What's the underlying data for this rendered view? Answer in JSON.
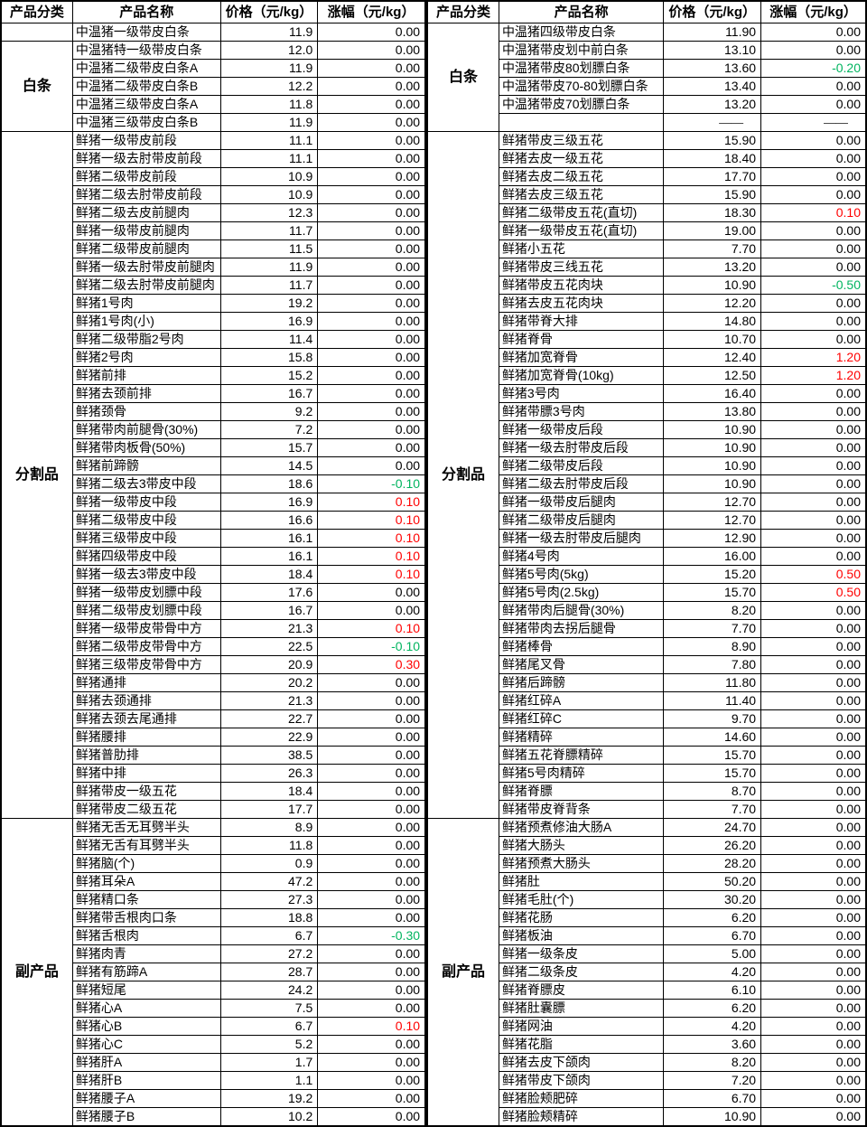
{
  "dash": "——",
  "colors": {
    "up_change": "#ff0000",
    "down_change": "#00b45f",
    "text": "#000000",
    "grid": "#000000"
  },
  "tables": [
    {
      "headers": [
        "产品分类",
        "产品名称",
        "价格（元/kg）",
        "涨幅（元/kg）"
      ],
      "groups": [
        {
          "category": "",
          "rows": [
            {
              "name": "中温猪一级带皮白条",
              "price": "11.9",
              "change": "0.00"
            }
          ]
        },
        {
          "category": "白条",
          "rows": [
            {
              "name": "中温猪特一级带皮白条",
              "price": "12.0",
              "change": "0.00"
            },
            {
              "name": "中温猪二级带皮白条A",
              "price": "11.9",
              "change": "0.00"
            },
            {
              "name": "中温猪二级带皮白条B",
              "price": "12.2",
              "change": "0.00"
            },
            {
              "name": "中温猪三级带皮白条A",
              "price": "11.8",
              "change": "0.00"
            },
            {
              "name": "中温猪三级带皮白条B",
              "price": "11.9",
              "change": "0.00"
            }
          ]
        },
        {
          "category": "分割品",
          "rows": [
            {
              "name": "鲜猪一级带皮前段",
              "price": "11.1",
              "change": "0.00"
            },
            {
              "name": "鲜猪一级去肘带皮前段",
              "price": "11.1",
              "change": "0.00"
            },
            {
              "name": "鲜猪二级带皮前段",
              "price": "10.9",
              "change": "0.00"
            },
            {
              "name": "鲜猪二级去肘带皮前段",
              "price": "10.9",
              "change": "0.00"
            },
            {
              "name": "鲜猪二级去皮前腿肉",
              "price": "12.3",
              "change": "0.00"
            },
            {
              "name": "鲜猪一级带皮前腿肉",
              "price": "11.7",
              "change": "0.00"
            },
            {
              "name": "鲜猪二级带皮前腿肉",
              "price": "11.5",
              "change": "0.00"
            },
            {
              "name": "鲜猪一级去肘带皮前腿肉",
              "price": "11.9",
              "change": "0.00"
            },
            {
              "name": "鲜猪二级去肘带皮前腿肉",
              "price": "11.7",
              "change": "0.00"
            },
            {
              "name": "鲜猪1号肉",
              "price": "19.2",
              "change": "0.00"
            },
            {
              "name": "鲜猪1号肉(小)",
              "price": "16.9",
              "change": "0.00"
            },
            {
              "name": "鲜猪二级带脂2号肉",
              "price": "11.4",
              "change": "0.00"
            },
            {
              "name": "鲜猪2号肉",
              "price": "15.8",
              "change": "0.00"
            },
            {
              "name": "鲜猪前排",
              "price": "15.2",
              "change": "0.00"
            },
            {
              "name": "鲜猪去颈前排",
              "price": "16.7",
              "change": "0.00"
            },
            {
              "name": "鲜猪颈骨",
              "price": "9.2",
              "change": "0.00"
            },
            {
              "name": "鲜猪带肉前腿骨(30%)",
              "price": "7.2",
              "change": "0.00"
            },
            {
              "name": "鲜猪带肉板骨(50%)",
              "price": "15.7",
              "change": "0.00"
            },
            {
              "name": "鲜猪前蹄髈",
              "price": "14.5",
              "change": "0.00"
            },
            {
              "name": "鲜猪二级去3带皮中段",
              "price": "18.6",
              "change": "-0.10"
            },
            {
              "name": "鲜猪一级带皮中段",
              "price": "16.9",
              "change": "0.10"
            },
            {
              "name": "鲜猪二级带皮中段",
              "price": "16.6",
              "change": "0.10"
            },
            {
              "name": "鲜猪三级带皮中段",
              "price": "16.1",
              "change": "0.10"
            },
            {
              "name": "鲜猪四级带皮中段",
              "price": "16.1",
              "change": "0.10"
            },
            {
              "name": "鲜猪一级去3带皮中段",
              "price": "18.4",
              "change": "0.10"
            },
            {
              "name": "鲜猪一级带皮划膘中段",
              "price": "17.6",
              "change": "0.00"
            },
            {
              "name": "鲜猪二级带皮划膘中段",
              "price": "16.7",
              "change": "0.00"
            },
            {
              "name": "鲜猪一级带皮带骨中方",
              "price": "21.3",
              "change": "0.10"
            },
            {
              "name": "鲜猪二级带皮带骨中方",
              "price": "22.5",
              "change": "-0.10"
            },
            {
              "name": "鲜猪三级带皮带骨中方",
              "price": "20.9",
              "change": "0.30"
            },
            {
              "name": "鲜猪通排",
              "price": "20.2",
              "change": "0.00"
            },
            {
              "name": "鲜猪去颈通排",
              "price": "21.3",
              "change": "0.00"
            },
            {
              "name": "鲜猪去颈去尾通排",
              "price": "22.7",
              "change": "0.00"
            },
            {
              "name": "鲜猪腰排",
              "price": "22.9",
              "change": "0.00"
            },
            {
              "name": "鲜猪普肋排",
              "price": "38.5",
              "change": "0.00"
            },
            {
              "name": "鲜猪中排",
              "price": "26.3",
              "change": "0.00"
            },
            {
              "name": "鲜猪带皮一级五花",
              "price": "18.4",
              "change": "0.00"
            },
            {
              "name": "鲜猪带皮二级五花",
              "price": "17.7",
              "change": "0.00"
            }
          ]
        },
        {
          "category": "副产品",
          "rows": [
            {
              "name": "鲜猪无舌无耳劈半头",
              "price": "8.9",
              "change": "0.00"
            },
            {
              "name": "鲜猪无舌有耳劈半头",
              "price": "11.8",
              "change": "0.00"
            },
            {
              "name": "鲜猪脑(个)",
              "price": "0.9",
              "change": "0.00"
            },
            {
              "name": "鲜猪耳朵A",
              "price": "47.2",
              "change": "0.00"
            },
            {
              "name": "鲜猪精口条",
              "price": "27.3",
              "change": "0.00"
            },
            {
              "name": "鲜猪带舌根肉口条",
              "price": "18.8",
              "change": "0.00"
            },
            {
              "name": "鲜猪舌根肉",
              "price": "6.7",
              "change": "-0.30"
            },
            {
              "name": "鲜猪肉青",
              "price": "27.2",
              "change": "0.00"
            },
            {
              "name": "鲜猪有筋蹄A",
              "price": "28.7",
              "change": "0.00"
            },
            {
              "name": "鲜猪短尾",
              "price": "24.2",
              "change": "0.00"
            },
            {
              "name": "鲜猪心A",
              "price": "7.5",
              "change": "0.00"
            },
            {
              "name": "鲜猪心B",
              "price": "6.7",
              "change": "0.10"
            },
            {
              "name": "鲜猪心C",
              "price": "5.2",
              "change": "0.00"
            },
            {
              "name": "鲜猪肝A",
              "price": "1.7",
              "change": "0.00"
            },
            {
              "name": "鲜猪肝B",
              "price": "1.1",
              "change": "0.00"
            },
            {
              "name": "鲜猪腰子A",
              "price": "19.2",
              "change": "0.00"
            },
            {
              "name": "鲜猪腰子B",
              "price": "10.2",
              "change": "0.00"
            }
          ]
        }
      ]
    },
    {
      "headers": [
        "产品分类",
        "产品名称",
        "价格（元/kg）",
        "涨幅（元/kg）"
      ],
      "groups": [
        {
          "category": "白条",
          "rows": [
            {
              "name": "中温猪四级带皮白条",
              "price": "11.90",
              "change": "0.00"
            },
            {
              "name": "中温猪带皮划中前白条",
              "price": "13.10",
              "change": "0.00"
            },
            {
              "name": "中温猪带皮80划膘白条",
              "price": "13.60",
              "change": "-0.20"
            },
            {
              "name": "中温猪带皮70-80划膘白条",
              "price": "13.40",
              "change": "0.00"
            },
            {
              "name": "中温猪带皮70划膘白条",
              "price": "13.20",
              "change": "0.00"
            },
            {
              "name": "",
              "price": "——",
              "change": "——"
            }
          ]
        },
        {
          "category": "分割品",
          "rows": [
            {
              "name": "鲜猪带皮三级五花",
              "price": "15.90",
              "change": "0.00"
            },
            {
              "name": "鲜猪去皮一级五花",
              "price": "18.40",
              "change": "0.00"
            },
            {
              "name": "鲜猪去皮二级五花",
              "price": "17.70",
              "change": "0.00"
            },
            {
              "name": "鲜猪去皮三级五花",
              "price": "15.90",
              "change": "0.00"
            },
            {
              "name": "鲜猪二级带皮五花(直切)",
              "price": "18.30",
              "change": "0.10"
            },
            {
              "name": "鲜猪一级带皮五花(直切)",
              "price": "19.00",
              "change": "0.00"
            },
            {
              "name": "鲜猪小五花",
              "price": "7.70",
              "change": "0.00"
            },
            {
              "name": "鲜猪带皮三线五花",
              "price": "13.20",
              "change": "0.00"
            },
            {
              "name": "鲜猪带皮五花肉块",
              "price": "10.90",
              "change": "-0.50"
            },
            {
              "name": "鲜猪去皮五花肉块",
              "price": "12.20",
              "change": "0.00"
            },
            {
              "name": "鲜猪带脊大排",
              "price": "14.80",
              "change": "0.00"
            },
            {
              "name": "鲜猪脊骨",
              "price": "10.70",
              "change": "0.00"
            },
            {
              "name": "鲜猪加宽脊骨",
              "price": "12.40",
              "change": "1.20"
            },
            {
              "name": "鲜猪加宽脊骨(10kg)",
              "price": "12.50",
              "change": "1.20"
            },
            {
              "name": "鲜猪3号肉",
              "price": "16.40",
              "change": "0.00"
            },
            {
              "name": "鲜猪带膘3号肉",
              "price": "13.80",
              "change": "0.00"
            },
            {
              "name": "鲜猪一级带皮后段",
              "price": "10.90",
              "change": "0.00"
            },
            {
              "name": "鲜猪一级去肘带皮后段",
              "price": "10.90",
              "change": "0.00"
            },
            {
              "name": "鲜猪二级带皮后段",
              "price": "10.90",
              "change": "0.00"
            },
            {
              "name": "鲜猪二级去肘带皮后段",
              "price": "10.90",
              "change": "0.00"
            },
            {
              "name": "鲜猪一级带皮后腿肉",
              "price": "12.70",
              "change": "0.00"
            },
            {
              "name": "鲜猪二级带皮后腿肉",
              "price": "12.70",
              "change": "0.00"
            },
            {
              "name": "鲜猪一级去肘带皮后腿肉",
              "price": "12.90",
              "change": "0.00"
            },
            {
              "name": "鲜猪4号肉",
              "price": "16.00",
              "change": "0.00"
            },
            {
              "name": "鲜猪5号肉(5kg)",
              "price": "15.20",
              "change": "0.50"
            },
            {
              "name": "鲜猪5号肉(2.5kg)",
              "price": "15.70",
              "change": "0.50"
            },
            {
              "name": "鲜猪带肉后腿骨(30%)",
              "price": "8.20",
              "change": "0.00"
            },
            {
              "name": "鲜猪带肉去拐后腿骨",
              "price": "7.70",
              "change": "0.00"
            },
            {
              "name": "鲜猪棒骨",
              "price": "8.90",
              "change": "0.00"
            },
            {
              "name": "鲜猪尾叉骨",
              "price": "7.80",
              "change": "0.00"
            },
            {
              "name": "鲜猪后蹄髈",
              "price": "11.80",
              "change": "0.00"
            },
            {
              "name": "鲜猪红碎A",
              "price": "11.40",
              "change": "0.00"
            },
            {
              "name": "鲜猪红碎C",
              "price": "9.70",
              "change": "0.00"
            },
            {
              "name": "鲜猪精碎",
              "price": "14.60",
              "change": "0.00"
            },
            {
              "name": "鲜猪五花脊膘精碎",
              "price": "15.70",
              "change": "0.00"
            },
            {
              "name": "鲜猪5号肉精碎",
              "price": "15.70",
              "change": "0.00"
            },
            {
              "name": "鲜猪脊膘",
              "price": "8.70",
              "change": "0.00"
            },
            {
              "name": "鲜猪带皮脊背条",
              "price": "7.70",
              "change": "0.00"
            }
          ]
        },
        {
          "category": "副产品",
          "rows": [
            {
              "name": "鲜猪预煮修油大肠A",
              "price": "24.70",
              "change": "0.00"
            },
            {
              "name": "鲜猪大肠头",
              "price": "26.20",
              "change": "0.00"
            },
            {
              "name": "鲜猪预煮大肠头",
              "price": "28.20",
              "change": "0.00"
            },
            {
              "name": "鲜猪肚",
              "price": "50.20",
              "change": "0.00"
            },
            {
              "name": "鲜猪毛肚(个)",
              "price": "30.20",
              "change": "0.00"
            },
            {
              "name": "鲜猪花肠",
              "price": "6.20",
              "change": "0.00"
            },
            {
              "name": "鲜猪板油",
              "price": "6.70",
              "change": "0.00"
            },
            {
              "name": "鲜猪一级条皮",
              "price": "5.00",
              "change": "0.00"
            },
            {
              "name": "鲜猪二级条皮",
              "price": "4.20",
              "change": "0.00"
            },
            {
              "name": "鲜猪脊膘皮",
              "price": "6.10",
              "change": "0.00"
            },
            {
              "name": "鲜猪肚囊膘",
              "price": "6.20",
              "change": "0.00"
            },
            {
              "name": "鲜猪网油",
              "price": "4.20",
              "change": "0.00"
            },
            {
              "name": "鲜猪花脂",
              "price": "3.60",
              "change": "0.00"
            },
            {
              "name": "鲜猪去皮下颌肉",
              "price": "8.20",
              "change": "0.00"
            },
            {
              "name": "鲜猪带皮下颌肉",
              "price": "7.20",
              "change": "0.00"
            },
            {
              "name": "鲜猪脸颊肥碎",
              "price": "6.70",
              "change": "0.00"
            },
            {
              "name": "鲜猪脸颊精碎",
              "price": "10.90",
              "change": "0.00"
            }
          ]
        }
      ]
    }
  ]
}
